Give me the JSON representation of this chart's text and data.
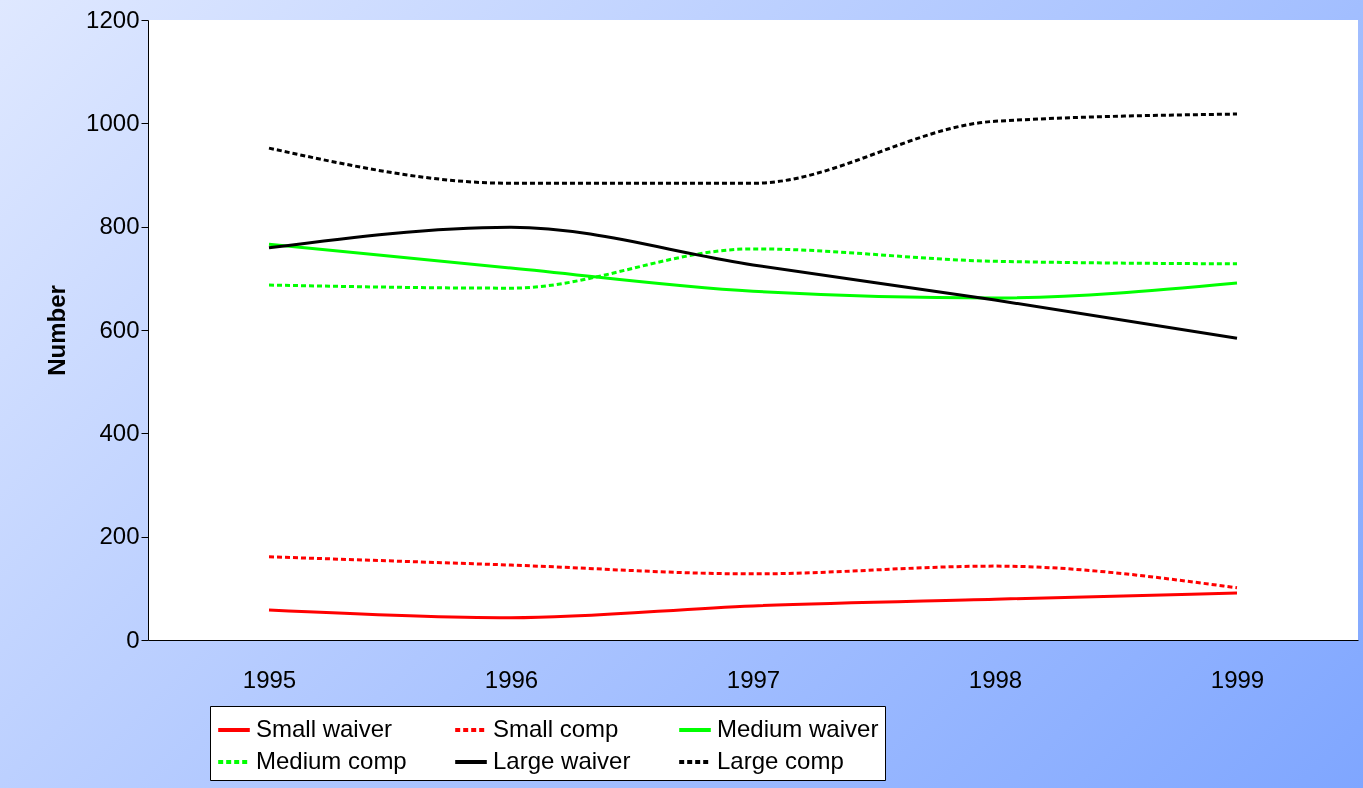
{
  "chart_data": {
    "type": "line",
    "ylabel": "Number",
    "categories": [
      "1995",
      "1996",
      "1997",
      "1998",
      "1999"
    ],
    "ylim": [
      0,
      1200
    ],
    "yticks": [
      0,
      200,
      400,
      600,
      800,
      1000,
      1200
    ],
    "grid": false,
    "legend": "bottom",
    "marker": "none",
    "series": [
      {
        "name": "Small waiver",
        "color": "#ff0000",
        "line_style": "solid",
        "values": [
          58,
          43,
          66,
          79,
          91
        ]
      },
      {
        "name": "Small comp",
        "color": "#ff0000",
        "line_style": "dashed",
        "values": [
          161,
          145,
          128,
          143,
          101
        ]
      },
      {
        "name": "Medium waiver",
        "color": "#00ff00",
        "line_style": "solid",
        "values": [
          766,
          720,
          675,
          662,
          691
        ]
      },
      {
        "name": "Medium comp",
        "color": "#00ff00",
        "line_style": "dashed",
        "values": [
          687,
          681,
          757,
          733,
          728
        ]
      },
      {
        "name": "Large waiver",
        "color": "#000000",
        "line_style": "solid",
        "values": [
          759,
          799,
          726,
          658,
          584
        ]
      },
      {
        "name": "Large comp",
        "color": "#000000",
        "line_style": "dashed",
        "values": [
          952,
          884,
          884,
          1004,
          1018
        ]
      }
    ]
  }
}
